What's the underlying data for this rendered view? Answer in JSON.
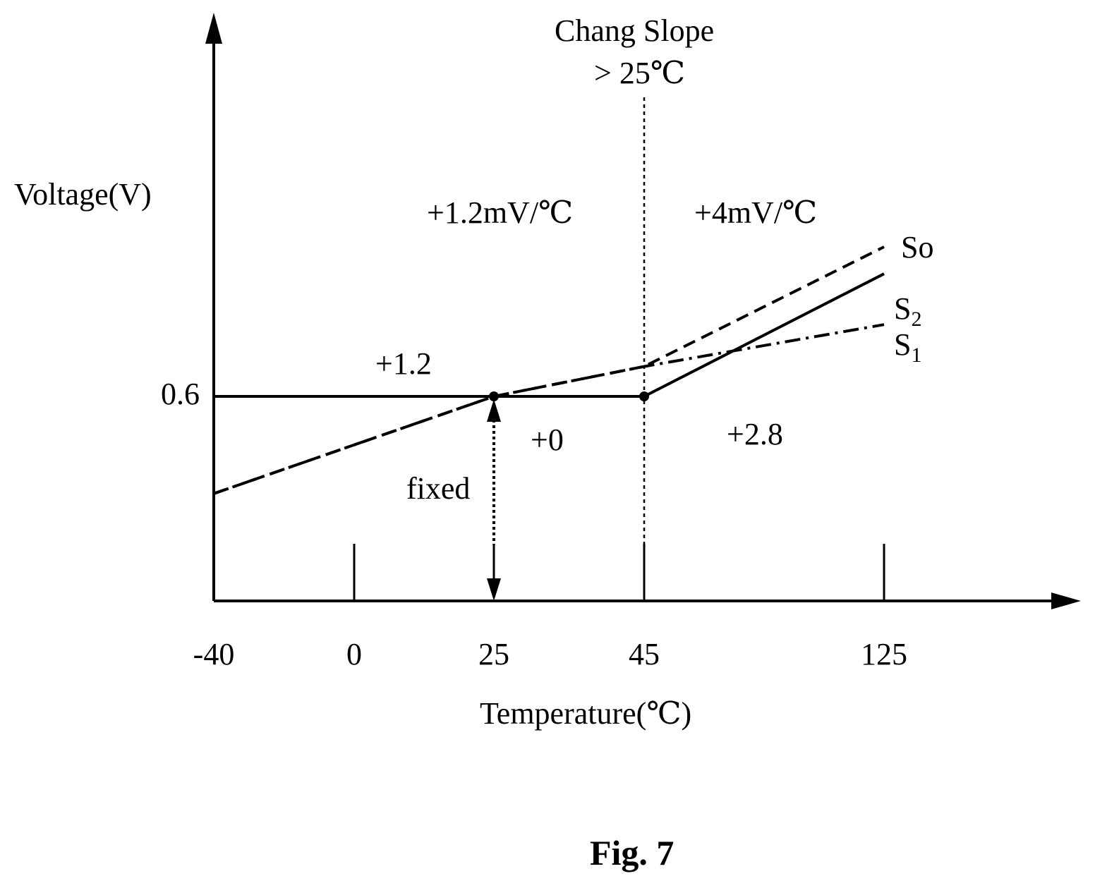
{
  "chart_data": {
    "type": "line",
    "ylabel": "Voltage(V)",
    "xlabel": "Temperature(℃)",
    "x_ticks": [
      "-40",
      "0",
      "25",
      "45",
      "125"
    ],
    "y_ticks": [
      "0.6"
    ],
    "xlim": [
      -40,
      125
    ],
    "series": [
      {
        "name": "So",
        "style": "dashed",
        "x": [
          -40,
          25,
          45,
          125
        ],
        "y": [
          0.522,
          0.6,
          0.624,
          0.72
        ]
      },
      {
        "name": "S2",
        "style": "dash-dot",
        "x": [
          -40,
          25,
          45,
          125
        ],
        "y": [
          0.522,
          0.6,
          0.624,
          0.6576
        ]
      },
      {
        "name": "S1",
        "style": "solid",
        "x": [
          -40,
          25,
          45,
          125
        ],
        "y": [
          0.6,
          0.6,
          0.6,
          0.6984
        ]
      }
    ],
    "points": [
      {
        "x": 25,
        "y": 0.6
      },
      {
        "x": 45,
        "y": 0.6
      }
    ],
    "annotations": {
      "change_header": "Chang Slope",
      "change_condition": "> 25℃",
      "slope_low": "+1.2mV/℃",
      "slope_high": "+4mV/℃",
      "offset_upper": "+1.2",
      "offset_zero": "+0",
      "offset_high": "+2.8",
      "fixed_label": "fixed"
    }
  },
  "figure_label": "Fig. 7"
}
